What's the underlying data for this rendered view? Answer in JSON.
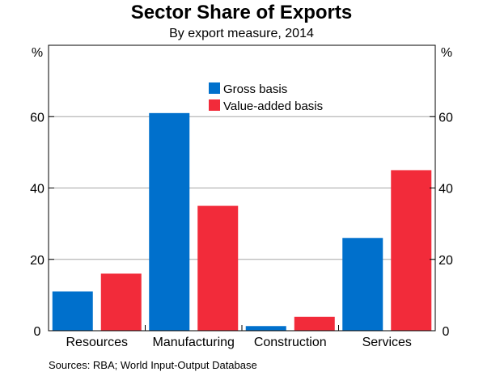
{
  "chart_data": {
    "type": "bar",
    "title": "Sector Share of Exports",
    "subtitle": "By export measure, 2014",
    "unit_left": "%",
    "unit_right": "%",
    "categories": [
      "Resources",
      "Manufacturing",
      "Construction",
      "Services"
    ],
    "series": [
      {
        "name": "Gross basis",
        "color": "#0070cc",
        "values": [
          11,
          61,
          1.3,
          26
        ]
      },
      {
        "name": "Value-added basis",
        "color": "#f22b3a",
        "values": [
          16,
          35,
          3.9,
          45
        ]
      }
    ],
    "ylim": [
      0,
      80
    ],
    "yticks": [
      0,
      20,
      40,
      60
    ],
    "grid": true,
    "legend_position": "top-center",
    "source": "Sources:  RBA; World Input-Output Database"
  }
}
